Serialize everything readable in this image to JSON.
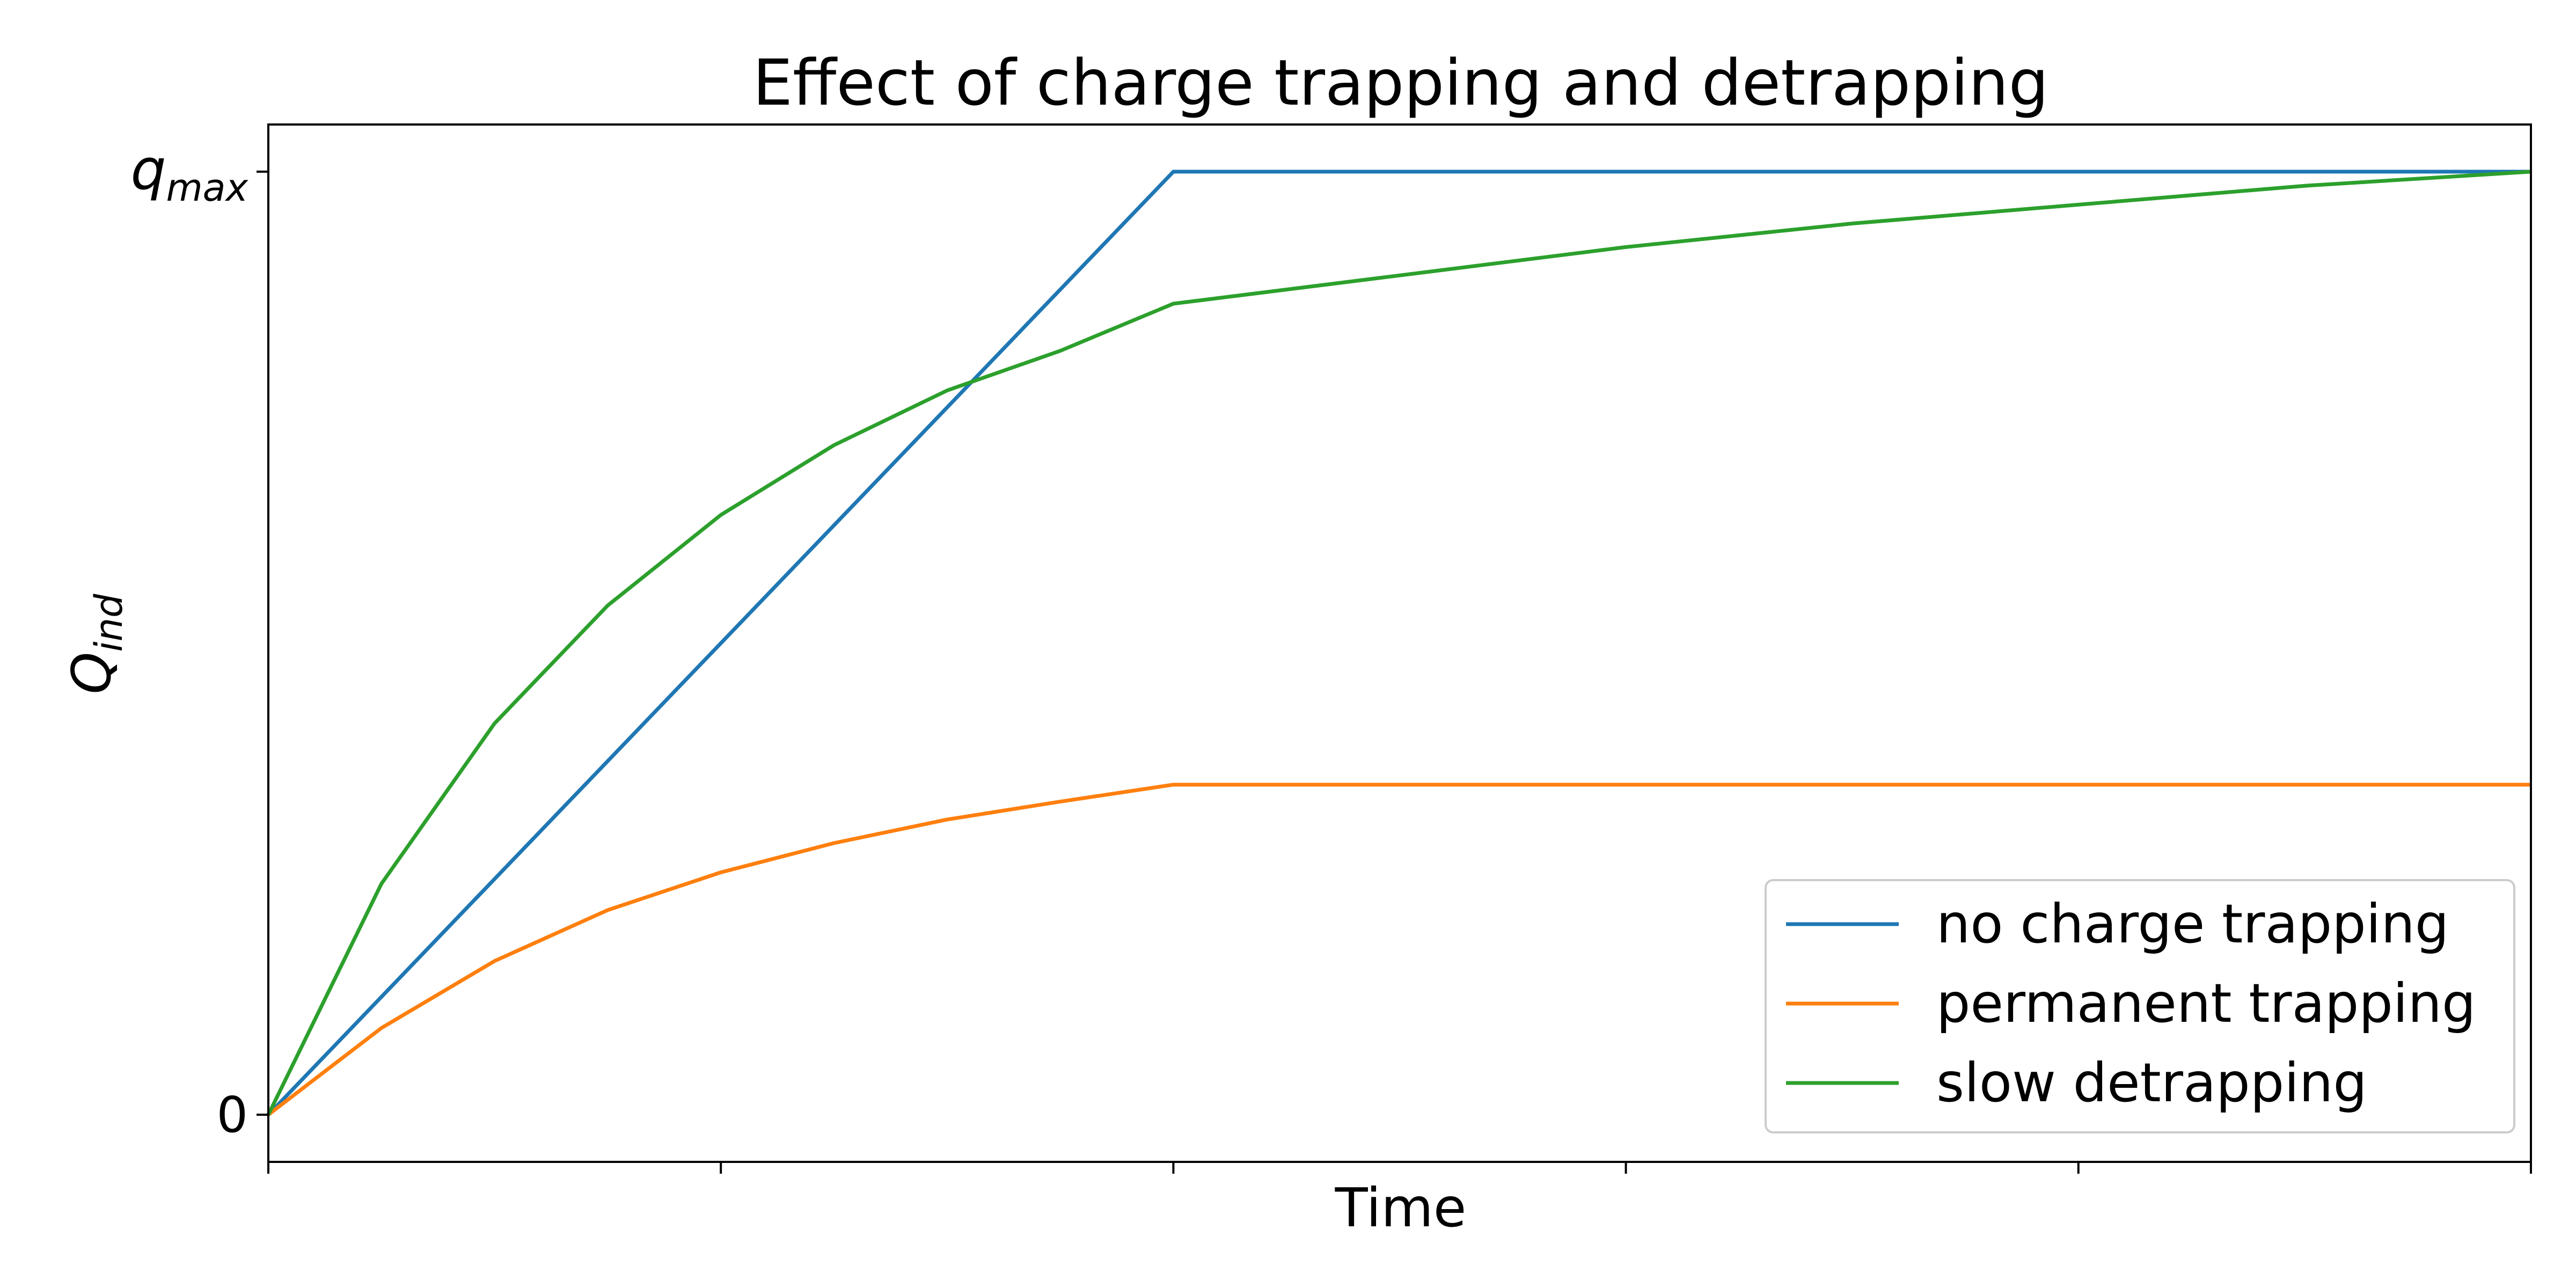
{
  "chart_data": {
    "type": "line",
    "title": "Effect of charge trapping and detrapping",
    "xlabel": "Time",
    "ylabel": {
      "main": "Q",
      "sub": "ind"
    },
    "xlim": [
      0,
      10
    ],
    "ylim": [
      -0.05,
      1.05
    ],
    "x_ticks": [
      0,
      2,
      4,
      6,
      8,
      10
    ],
    "x_tick_labels": [
      "",
      "",
      "",
      "",
      "",
      ""
    ],
    "y_ticks": [
      {
        "value": 0,
        "main": "0",
        "sub": ""
      },
      {
        "value": 1,
        "main": "q",
        "sub": "max"
      }
    ],
    "grid": false,
    "legend_position": "bottom-right",
    "series": [
      {
        "name": "no charge trapping",
        "color": "#1f77b4",
        "x": [
          0,
          4,
          10
        ],
        "y": [
          0,
          1,
          1
        ]
      },
      {
        "name": "permanent trapping",
        "color": "#ff7f0e",
        "x": [
          0,
          0.5,
          1,
          1.5,
          2,
          2.5,
          3,
          3.5,
          4,
          5,
          6,
          7,
          8,
          9,
          10
        ],
        "y": [
          0,
          0.092,
          0.163,
          0.217,
          0.257,
          0.288,
          0.313,
          0.332,
          0.35,
          0.35,
          0.35,
          0.35,
          0.35,
          0.35,
          0.35
        ]
      },
      {
        "name": "slow detrapping",
        "color": "#2ca02c",
        "x": [
          0,
          0.5,
          1,
          1.5,
          2,
          2.5,
          3,
          3.5,
          4,
          5,
          6,
          7,
          8,
          9,
          10
        ],
        "y": [
          0,
          0.245,
          0.415,
          0.54,
          0.636,
          0.71,
          0.768,
          0.81,
          0.86,
          0.89,
          0.92,
          0.945,
          0.965,
          0.985,
          1.0
        ]
      }
    ]
  }
}
